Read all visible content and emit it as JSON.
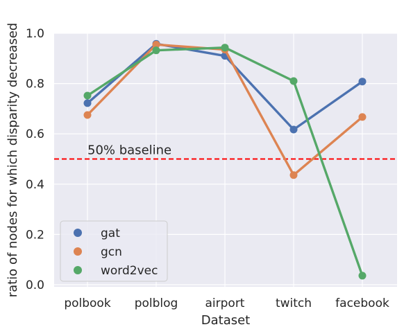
{
  "chart_data": {
    "type": "line",
    "title": "",
    "xlabel": "Dataset",
    "ylabel": "ratio of nodes for which disparity decreased",
    "categories": [
      "polbook",
      "polblog",
      "airport",
      "twitch",
      "facebook"
    ],
    "ylim": [
      0.0,
      1.0
    ],
    "yticks": [
      0.0,
      0.2,
      0.4,
      0.6,
      0.8,
      1.0
    ],
    "ytick_labels": [
      "0.0",
      "0.2",
      "0.4",
      "0.6",
      "0.8",
      "1.0"
    ],
    "grid": true,
    "legend_position": "lower-left",
    "series": [
      {
        "name": "gat",
        "color": "#4c72b0",
        "values": [
          0.722,
          0.958,
          0.91,
          0.617,
          0.808
        ]
      },
      {
        "name": "gcn",
        "color": "#dd8452",
        "values": [
          0.675,
          0.955,
          0.935,
          0.436,
          0.667
        ]
      },
      {
        "name": "word2vec",
        "color": "#55a868",
        "values": [
          0.752,
          0.932,
          0.943,
          0.81,
          0.036
        ]
      }
    ],
    "baseline": {
      "value": 0.5,
      "label": "50% baseline",
      "color": "#ff0000",
      "style": "dashed"
    }
  }
}
